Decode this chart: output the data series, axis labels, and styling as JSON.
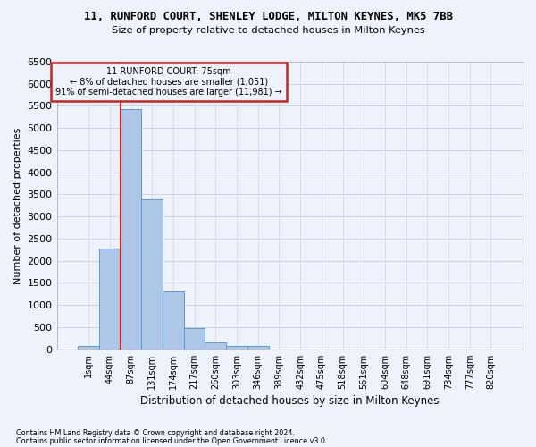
{
  "title1": "11, RUNFORD COURT, SHENLEY LODGE, MILTON KEYNES, MK5 7BB",
  "title2": "Size of property relative to detached houses in Milton Keynes",
  "xlabel": "Distribution of detached houses by size in Milton Keynes",
  "ylabel": "Number of detached properties",
  "footer1": "Contains HM Land Registry data © Crown copyright and database right 2024.",
  "footer2": "Contains public sector information licensed under the Open Government Licence v3.0.",
  "annotation_title": "11 RUNFORD COURT: 75sqm",
  "annotation_line2": "← 8% of detached houses are smaller (1,051)",
  "annotation_line3": "91% of semi-detached houses are larger (11,981) →",
  "bar_values": [
    70,
    2280,
    5420,
    3380,
    1310,
    480,
    155,
    80,
    70,
    0,
    0,
    0,
    0,
    0,
    0,
    0,
    0,
    0,
    0,
    0
  ],
  "categories": [
    "1sqm",
    "44sqm",
    "87sqm",
    "131sqm",
    "174sqm",
    "217sqm",
    "260sqm",
    "303sqm",
    "346sqm",
    "389sqm",
    "432sqm",
    "475sqm",
    "518sqm",
    "561sqm",
    "604sqm",
    "648sqm",
    "691sqm",
    "734sqm",
    "777sqm",
    "820sqm"
  ],
  "bar_color": "#aec6e8",
  "bar_edge_color": "#5a9bd5",
  "highlight_color": "#cc2222",
  "background_color": "#eef2fb",
  "grid_color": "#c8d4e8",
  "ylim": [
    0,
    6500
  ],
  "yticks": [
    0,
    500,
    1000,
    1500,
    2000,
    2500,
    3000,
    3500,
    4000,
    4500,
    5000,
    5500,
    6000,
    6500
  ]
}
